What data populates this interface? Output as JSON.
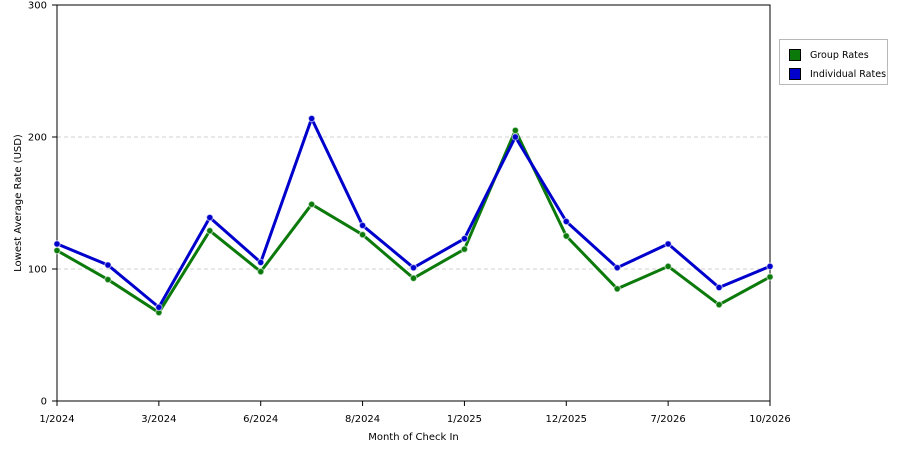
{
  "chart_data": {
    "type": "line",
    "xlabel": "Month of Check In",
    "ylabel": "Lowest Average Rate (USD)",
    "ylim": [
      0,
      300
    ],
    "y_ticks": [
      0,
      100,
      200,
      300
    ],
    "grid": "horizontal dashed",
    "legend_position": "right",
    "x": [
      "1/2024",
      "2/2024",
      "3/2024",
      "4/2024",
      "6/2024",
      "7/2024",
      "8/2024",
      "9/2024",
      "1/2025",
      "2/2025",
      "12/2025",
      "1/2026",
      "7/2026",
      "8/2026",
      "10/2026"
    ],
    "x_tick_labels": {
      "0": "1/2024",
      "2": "3/2024",
      "4": "6/2024",
      "6": "8/2024",
      "8": "1/2025",
      "10": "12/2025",
      "12": "7/2026",
      "14": "10/2026"
    },
    "series": [
      {
        "name": "Group Rates",
        "color": "#0b7a0b",
        "values": [
          114,
          92,
          67,
          129,
          98,
          149,
          126,
          93,
          115,
          205,
          125,
          85,
          102,
          73,
          94
        ]
      },
      {
        "name": "Individual Rates",
        "color": "#0000cc",
        "values": [
          119,
          103,
          71,
          139,
          105,
          214,
          133,
          101,
          123,
          200,
          136,
          101,
          119,
          86,
          102
        ]
      }
    ]
  }
}
